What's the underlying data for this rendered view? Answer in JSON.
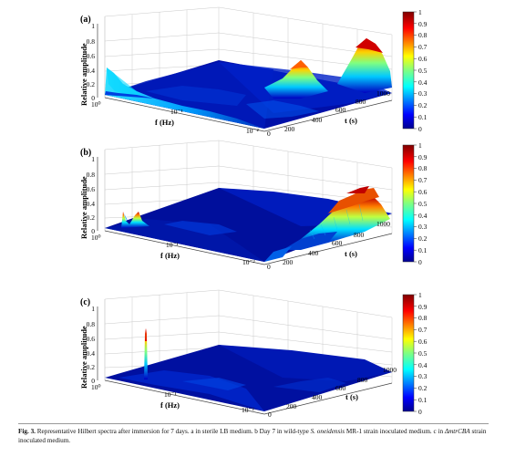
{
  "figure": {
    "panels": [
      {
        "label": "(a)",
        "z_axis_title": "Relative amplitude",
        "z_ticks": [
          "0",
          "0.2",
          "0.4",
          "0.6",
          "0.8",
          "1"
        ],
        "f_axis_title": "f (Hz)",
        "f_ticks": [
          "10⁰",
          "10⁻¹",
          "10⁻²"
        ],
        "t_axis_title": "t (s)",
        "t_ticks": [
          "0",
          "200",
          "400",
          "600",
          "800",
          "1000"
        ],
        "colorbar_ticks": [
          "0",
          "0.1",
          "0.2",
          "0.3",
          "0.4",
          "0.5",
          "0.6",
          "0.7",
          "0.8",
          "0.9",
          "1"
        ]
      },
      {
        "label": "(b)",
        "z_axis_title": "Relative amplitude",
        "z_ticks": [
          "0",
          "0.2",
          "0.4",
          "0.6",
          "0.8",
          "1"
        ],
        "f_axis_title": "f (Hz)",
        "f_ticks": [
          "10⁰",
          "10⁻¹",
          "10⁻²"
        ],
        "t_axis_title": "t (s)",
        "t_ticks": [
          "0",
          "200",
          "400",
          "600",
          "800",
          "1000"
        ],
        "colorbar_ticks": [
          "0",
          "0.1",
          "0.2",
          "0.3",
          "0.4",
          "0.5",
          "0.6",
          "0.7",
          "0.8",
          "0.9",
          "1"
        ]
      },
      {
        "label": "(c)",
        "z_axis_title": "Relative amplitude",
        "z_ticks": [
          "0",
          "0.2",
          "0.4",
          "0.6",
          "0.8",
          "1"
        ],
        "f_axis_title": "f (Hz)",
        "f_ticks": [
          "10⁰",
          "10⁻¹",
          "10⁻²"
        ],
        "t_axis_title": "t (s)",
        "t_ticks": [
          "0",
          "200",
          "400",
          "600",
          "800",
          "1000"
        ],
        "colorbar_ticks": [
          "0",
          "0.1",
          "0.2",
          "0.3",
          "0.4",
          "0.5",
          "0.6",
          "0.7",
          "0.8",
          "0.9",
          "1"
        ]
      }
    ],
    "colormap": [
      "#00008f",
      "#0000ff",
      "#00a0ff",
      "#00ffff",
      "#80ff80",
      "#ffff00",
      "#ff8000",
      "#ff0000",
      "#800000"
    ]
  },
  "caption": {
    "fig_no": "Fig. 3.",
    "part1": " Representative Hilbert spectra after immersion for 7 days. a in sterile LB medium. b Day 7 in wild-type ",
    "species": "S. oneidensis",
    "part2": " MR-1 strain inoculated medium. c in ",
    "strain": "ΔmtrCBA",
    "part3": " strain inoculated medium."
  }
}
